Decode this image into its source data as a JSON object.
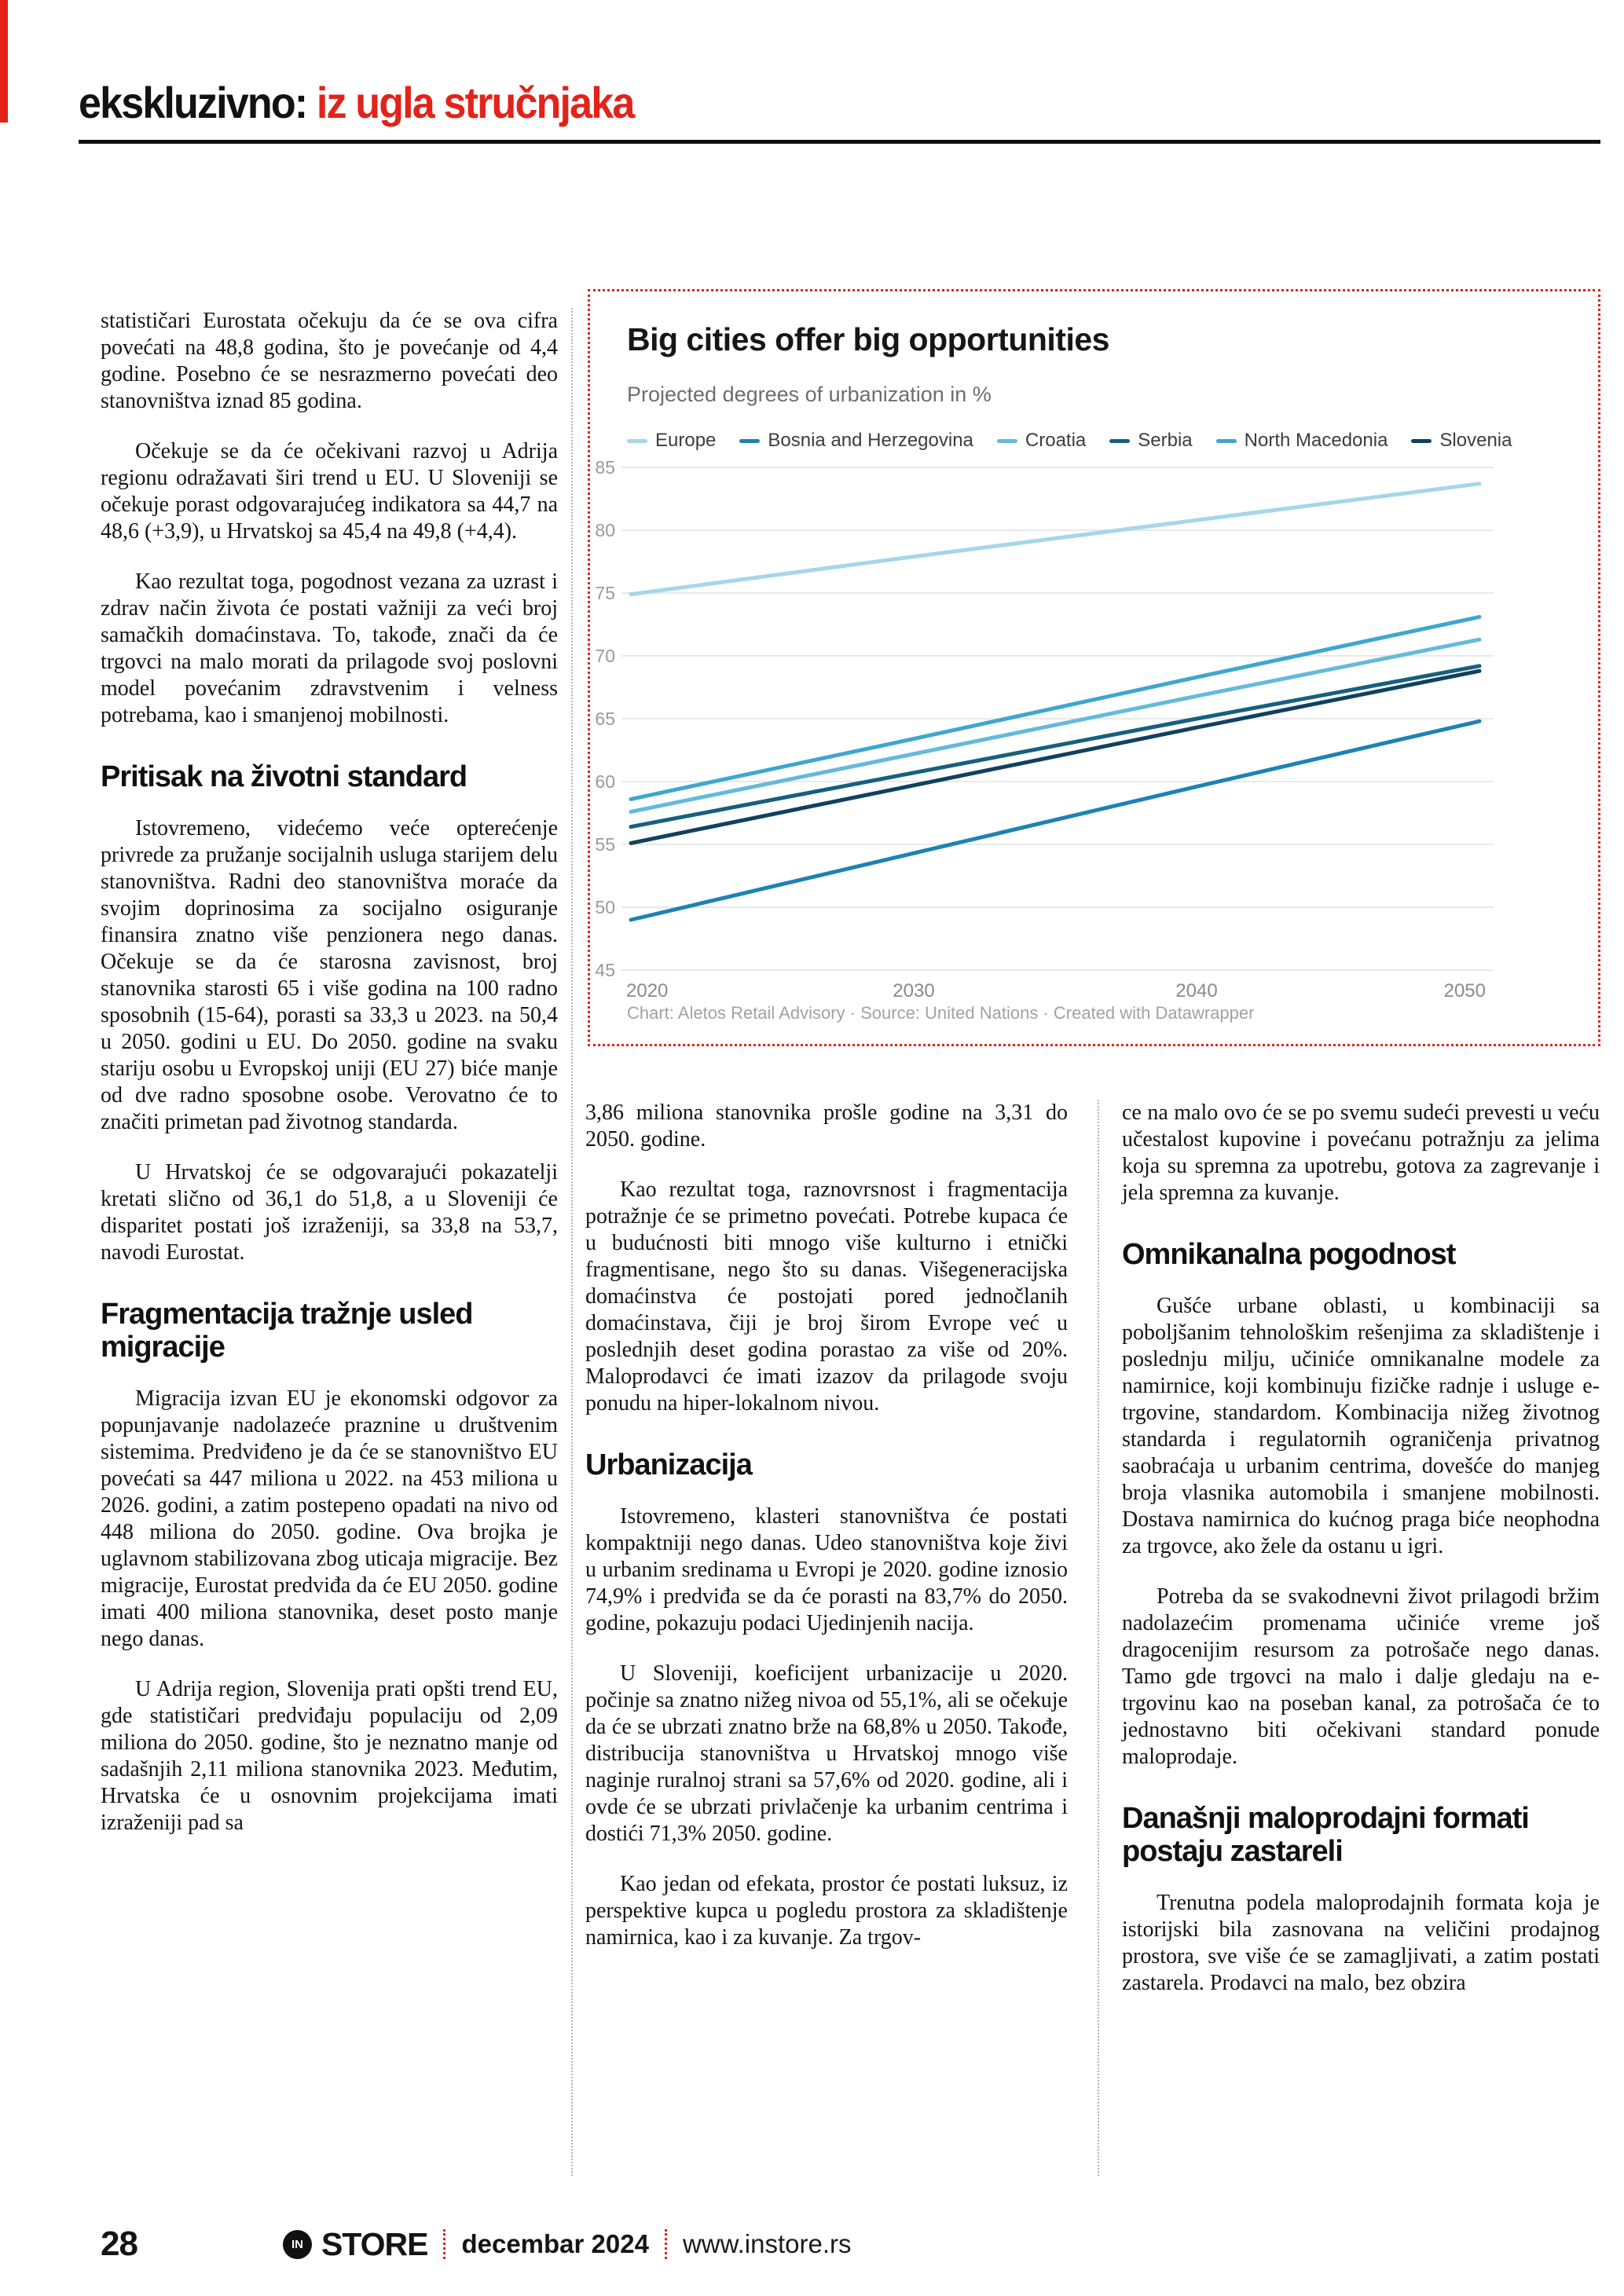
{
  "accent_color": "#e2231a",
  "masthead": {
    "black": "ekskluzivno:",
    "red": " iz ugla stručnjaka"
  },
  "columns": {
    "left": [
      {
        "type": "p",
        "indent": false,
        "text": "statističari Eurostata očekuju da će se ova cifra povećati na 48,8 godina, što je povećanje od 4,4 godine. Posebno će se nesrazmerno povećati deo stanovništva iznad 85 godina."
      },
      {
        "type": "p",
        "indent": true,
        "text": "Očekuje se da će očekivani razvoj u Adrija regionu odražavati širi trend u EU. U Sloveniji se očekuje porast odgovarajućeg indikatora sa 44,7 na 48,6 (+3,9), u Hrvatskoj sa 45,4 na 49,8 (+4,4)."
      },
      {
        "type": "p",
        "indent": true,
        "text": "Kao rezultat toga, pogodnost vezana za uzrast i zdrav način života će postati važniji za veći broj samačkih domaćinstava. To, takođe, znači da će trgovci na malo morati da prilagode svoj poslovni model povećanim zdravstvenim i velness potrebama, kao i smanjenoj mobilnosti."
      },
      {
        "type": "h",
        "text": "Pritisak na životni standard"
      },
      {
        "type": "p",
        "indent": true,
        "text": "Istovremeno, videćemo veće opterećenje privrede za pružanje socijalnih usluga starijem delu stanovništva. Radni deo stanovništva moraće da svojim doprinosima za socijalno osiguranje finansira znatno više penzionera nego danas. Očekuje se da će starosna zavisnost, broj stanovnika starosti 65 i više godina na 100 radno sposobnih (15-64), porasti sa 33,3 u 2023. na 50,4 u 2050. godini u EU. Do 2050. godine na svaku stariju osobu u Evropskoj uniji (EU 27) biće manje od dve radno sposobne osobe. Verovatno će to značiti primetan pad životnog standarda."
      },
      {
        "type": "p",
        "indent": true,
        "text": "U Hrvatskoj će se odgovarajući pokazatelji kretati slično od 36,1 do 51,8, a u Sloveniji će disparitet postati još izraženiji, sa 33,8 na 53,7, navodi Eurostat."
      },
      {
        "type": "h",
        "text": "Fragmentacija tražnje usled migracije"
      },
      {
        "type": "p",
        "indent": true,
        "text": "Migracija izvan EU je ekonomski odgovor za popunjavanje nadolazeće praznine u društvenim sistemima. Predviđeno je da će se stanovništvo EU povećati sa 447 miliona u 2022. na 453 miliona u 2026. godini, a zatim postepeno opadati na nivo od 448 miliona do 2050. godine. Ova brojka je uglavnom stabilizovana zbog uticaja migracije. Bez migracije, Eurostat predviđa da će EU 2050. godine imati 400 miliona stanovnika, deset posto manje nego danas."
      },
      {
        "type": "p",
        "indent": true,
        "text": "U Adrija region, Slovenija prati opšti trend EU, gde statističari predviđaju populaciju od 2,09 miliona do 2050. godine, što je neznatno manje od sadašnjih 2,11 miliona stanovnika 2023. Međutim, Hrvatska će u osnovnim projekcijama imati izraženiji pad sa"
      }
    ],
    "middle": [
      {
        "type": "p",
        "indent": false,
        "text": "3,86 miliona stanovnika prošle godine na 3,31 do 2050. godine."
      },
      {
        "type": "p",
        "indent": true,
        "text": "Kao rezultat toga, raznovrsnost i fragmentacija potražnje će se primetno povećati. Potrebe kupaca će u budućnosti biti mnogo više kulturno i etnički fragmentisane, nego što su danas. Višegeneracijska domaćinstva će postojati pored jednočlanih domaćinstava, čiji je broj širom Evrope već u poslednjih deset godina porastao za više od 20%. Maloprodavci će imati izazov da prilagode svoju ponudu na hiper-lokalnom nivou."
      },
      {
        "type": "h",
        "text": "Urbanizacija"
      },
      {
        "type": "p",
        "indent": true,
        "text": "Istovremeno, klasteri stanovništva će postati kompaktniji nego danas. Udeo stanovništva koje živi u urbanim sredinama u Evropi je 2020. godine iznosio 74,9% i predviđa se da će porasti na 83,7% do 2050. godine, pokazuju podaci Ujedinjenih nacija."
      },
      {
        "type": "p",
        "indent": true,
        "text": "U Sloveniji, koeficijent urbanizacije u 2020. počinje sa znatno nižeg nivoa od 55,1%, ali se očekuje da će se ubrzati znatno brže na 68,8% u 2050. Takođe, distribucija stanovništva u Hrvatskoj mnogo više naginje ruralnoj strani sa 57,6% od 2020. godine, ali i ovde će se ubrzati privlačenje ka urbanim centrima i dostići 71,3% 2050. godine."
      },
      {
        "type": "p",
        "indent": true,
        "text": "Kao jedan od efekata, prostor će postati luksuz, iz perspektive kupca u pogledu prostora za skladištenje namirnica, kao i za kuvanje. Za trgov-"
      }
    ],
    "right": [
      {
        "type": "p",
        "indent": false,
        "text": "ce na malo ovo će se po svemu sudeći prevesti u veću učestalost kupovine i povećanu potražnju za jelima koja su spremna za upotrebu, gotova za zagrevanje i jela spremna za kuvanje."
      },
      {
        "type": "h",
        "text": "Omnikanalna pogodnost"
      },
      {
        "type": "p",
        "indent": true,
        "text": "Gušće urbane oblasti, u kombinaciji sa poboljšanim tehnološkim rešenjima za skladištenje i poslednju milju, učiniće omnikanalne modele za namirnice, koji kombinuju fizičke radnje i usluge e-trgovine, standardom. Kombinacija nižeg životnog standarda i regulatornih ograničenja privatnog saobraćaja u urbanim centrima, dovešće do manjeg broja vlasnika automobila i smanjene mobilnosti. Dostava namirnica do kućnog praga biće neophodna za trgovce, ako žele da ostanu u igri."
      },
      {
        "type": "p",
        "indent": true,
        "text": "Potreba da se svakodnevni život prilagodi bržim nadolazećim promenama učiniće vreme još dragocenijim resursom za potrošače nego danas. Tamo gde trgovci na malo i dalje gledaju na e-trgovinu kao na poseban kanal, za potrošača će to jednostavno biti očekivani standard ponude maloprodaje."
      },
      {
        "type": "h",
        "text": "Današnji maloprodajni formati postaju zastareli"
      },
      {
        "type": "p",
        "indent": true,
        "text": "Trenutna podela maloprodajnih formata koja je istorijski bila zasnovana na veličini prodajnog prostora, sve više će se zamagljivati, a zatim postati zastarela. Prodavci na malo, bez obzira"
      }
    ]
  },
  "chart_data": {
    "type": "line",
    "title": "Big cities offer big opportunities",
    "subtitle": "Projected degrees of urbanization in %",
    "caption": "Chart: Aletos Retail Advisory · Source: United Nations · Created with Datawrapper",
    "x": [
      2020,
      2030,
      2040,
      2050
    ],
    "series": [
      {
        "name": "Europe",
        "color": "#a5d7e8",
        "values": [
          74.9,
          77.9,
          80.8,
          83.7
        ]
      },
      {
        "name": "Bosnia and Herzegovina",
        "color": "#1d82b5",
        "values": [
          49.0,
          54.3,
          59.6,
          64.8
        ]
      },
      {
        "name": "Croatia",
        "color": "#64bada",
        "values": [
          57.6,
          62.2,
          66.8,
          71.3
        ]
      },
      {
        "name": "Serbia",
        "color": "#16607f",
        "values": [
          56.4,
          60.7,
          65.0,
          69.2
        ]
      },
      {
        "name": "North Macedonia",
        "color": "#3fa6d0",
        "values": [
          58.6,
          63.4,
          68.3,
          73.1
        ]
      },
      {
        "name": "Slovenia",
        "color": "#10415f",
        "values": [
          55.1,
          59.7,
          64.3,
          68.8
        ]
      }
    ],
    "ylim": [
      45,
      85
    ],
    "yticks": [
      45,
      50,
      55,
      60,
      65,
      70,
      75,
      80,
      85
    ],
    "grid": true,
    "legend_position": "top",
    "grid_color": "#e9e9e9",
    "tick_label_color": "#9a9a9a"
  },
  "footer": {
    "page": "28",
    "logo": "IN",
    "brand": "STORE",
    "date": "decembar 2024",
    "url": "www.instore.rs"
  }
}
